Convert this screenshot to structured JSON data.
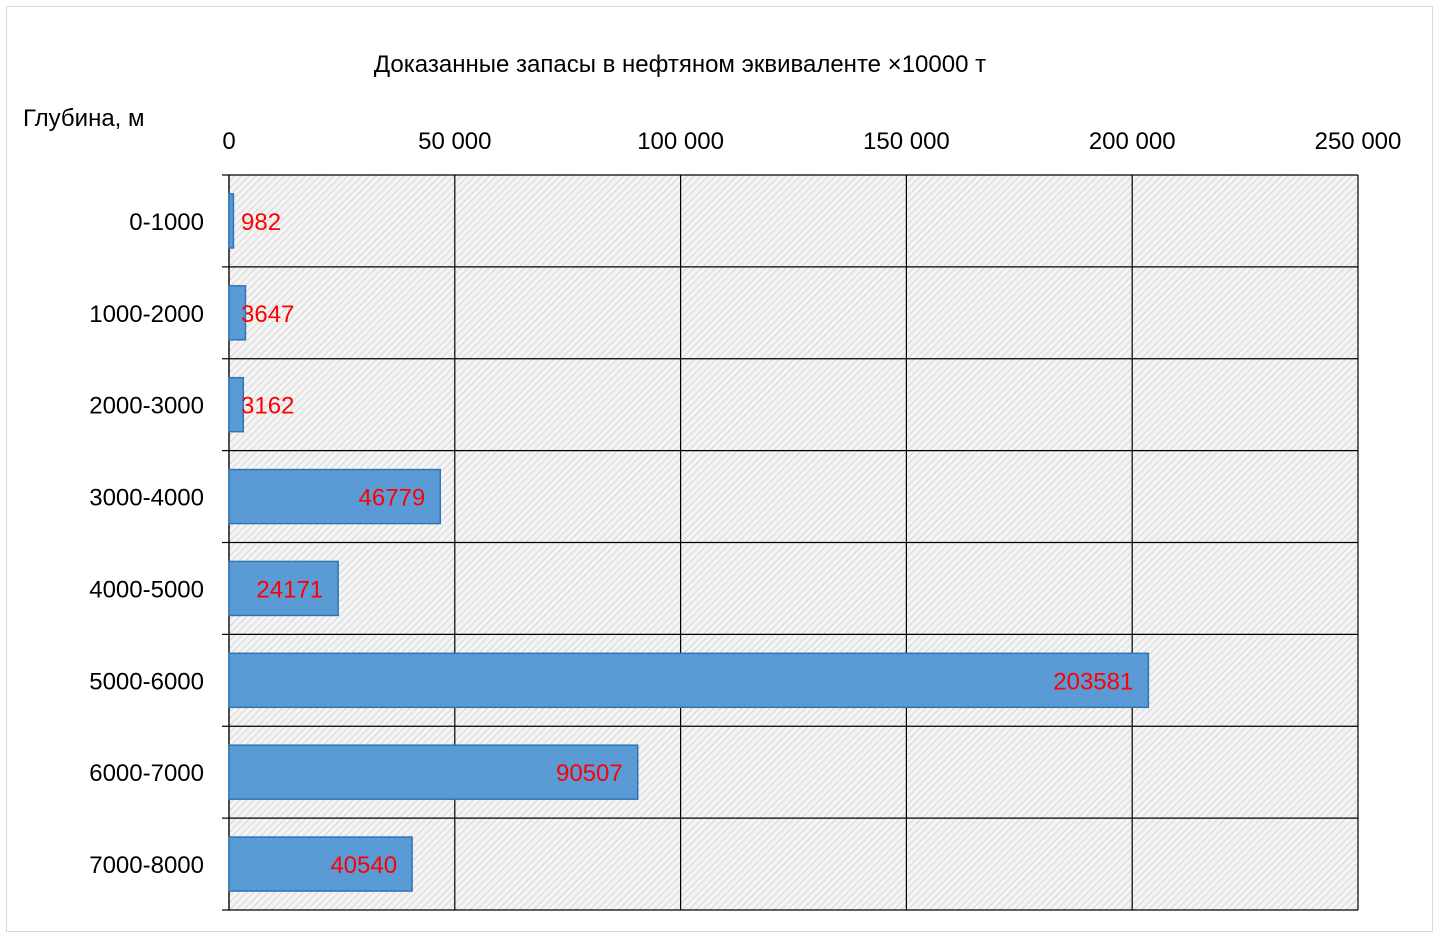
{
  "chart_data": {
    "type": "bar",
    "orientation": "horizontal",
    "title": "Доказанные запасы в нефтяном эквиваленте ×10000 т",
    "ylabel": "Глубина, м",
    "xlabel": "",
    "categories": [
      "0-1000",
      "1000-2000",
      "2000-3000",
      "3000-4000",
      "4000-5000",
      "5000-6000",
      "6000-7000",
      "7000-8000"
    ],
    "values": [
      982,
      3647,
      3162,
      46779,
      24171,
      203581,
      90507,
      40540
    ],
    "data_labels": [
      "982",
      "3647",
      "3162",
      "46779",
      "24171",
      "203581",
      "90507",
      "40540"
    ],
    "xlim": [
      0,
      250000
    ],
    "x_ticks": [
      0,
      50000,
      100000,
      150000,
      200000,
      250000
    ],
    "x_tick_labels": [
      "0",
      "50 000",
      "100 000",
      "150 000",
      "200 000",
      "250 000"
    ],
    "x_axis_position": "top",
    "grid": true,
    "plot_background": "hatched-gray",
    "colors": {
      "bar_fill": "#5b9bd5",
      "bar_border": "#2e75b6",
      "data_label": "#ff0000",
      "grid": "#000000"
    }
  }
}
